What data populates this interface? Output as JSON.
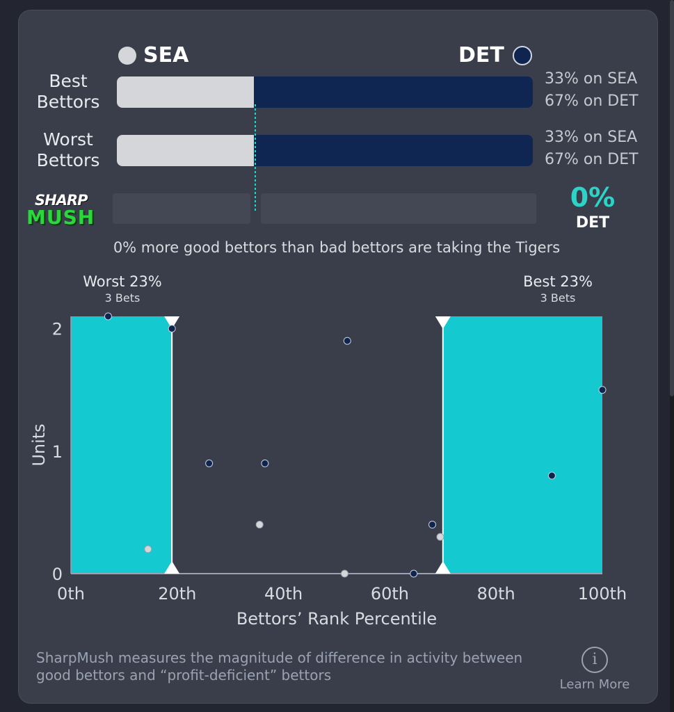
{
  "teams": {
    "left": {
      "abbr": "SEA",
      "color": "#d4d6da"
    },
    "right": {
      "abbr": "DET",
      "color": "#0f2550"
    }
  },
  "rows": [
    {
      "label_line1": "Best",
      "label_line2": "Bettors",
      "sea_pct": 33,
      "det_pct": 67,
      "sea_text": "33% on SEA",
      "det_text": "67% on DET"
    },
    {
      "label_line1": "Worst",
      "label_line2": "Bettors",
      "sea_pct": 33,
      "det_pct": 67,
      "sea_text": "33% on SEA",
      "det_text": "67% on DET"
    }
  ],
  "sharpmush": {
    "logo_top": "SHARP",
    "logo_bottom": "MUSH",
    "value": "0%",
    "team": "DET",
    "summary": "0% more good bettors than bad bettors are taking the Tigers"
  },
  "chart_data": {
    "type": "scatter",
    "xlabel": "Bettors’ Rank Percentile",
    "ylabel": "Units",
    "xlim": [
      0,
      100
    ],
    "ylim": [
      0,
      2.1
    ],
    "x_ticks": [
      "0th",
      "20th",
      "40th",
      "60th",
      "80th",
      "100th"
    ],
    "x_tick_values": [
      0,
      20,
      40,
      60,
      80,
      100
    ],
    "y_ticks": [
      "0",
      "1",
      "2"
    ],
    "y_tick_values": [
      0,
      1,
      2
    ],
    "selections": {
      "worst": {
        "label": "Worst 23%",
        "bets": "3 Bets",
        "from": 0,
        "to": 19
      },
      "best": {
        "label": "Best 23%",
        "bets": "3 Bets",
        "from": 70,
        "to": 100
      }
    },
    "series": [
      {
        "name": "SEA",
        "color": "#d4d6da",
        "points": [
          [
            14.5,
            0.2
          ],
          [
            35.5,
            0.4
          ],
          [
            51.5,
            0
          ],
          [
            69.5,
            0.3
          ]
        ]
      },
      {
        "name": "DET",
        "color": "#0f2550",
        "points": [
          [
            7,
            2.1
          ],
          [
            19,
            2.0
          ],
          [
            26,
            0.9
          ],
          [
            36.5,
            0.9
          ],
          [
            52,
            1.9
          ],
          [
            64.5,
            0
          ],
          [
            68,
            0.4
          ],
          [
            90.5,
            0.8
          ],
          [
            100,
            1.5
          ]
        ]
      }
    ],
    "highlight_color": "#14c9cf"
  },
  "footer": {
    "text": "SharpMush measures the magnitude of difference in activity between good bettors and “profit-deficient” bettors",
    "learn_more": "Learn More"
  }
}
